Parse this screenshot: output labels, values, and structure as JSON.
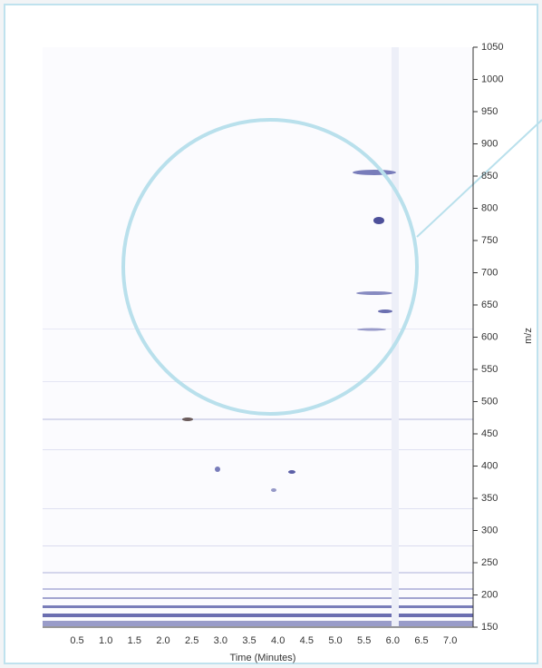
{
  "chart_data": {
    "type": "heatmap",
    "x_label": "Time (Minutes)",
    "y_label": "m/z",
    "xlim": [
      -0.1,
      7.4
    ],
    "xticks": [
      0.5,
      1.0,
      1.5,
      2.0,
      2.5,
      3.0,
      3.5,
      4.0,
      4.5,
      5.0,
      5.5,
      6.0,
      6.5,
      7.0
    ],
    "ylim": [
      150,
      1050
    ],
    "yticks": [
      150,
      200,
      250,
      300,
      350,
      400,
      450,
      500,
      550,
      600,
      650,
      700,
      750,
      800,
      850,
      900,
      950,
      1000,
      1050
    ]
  }
}
